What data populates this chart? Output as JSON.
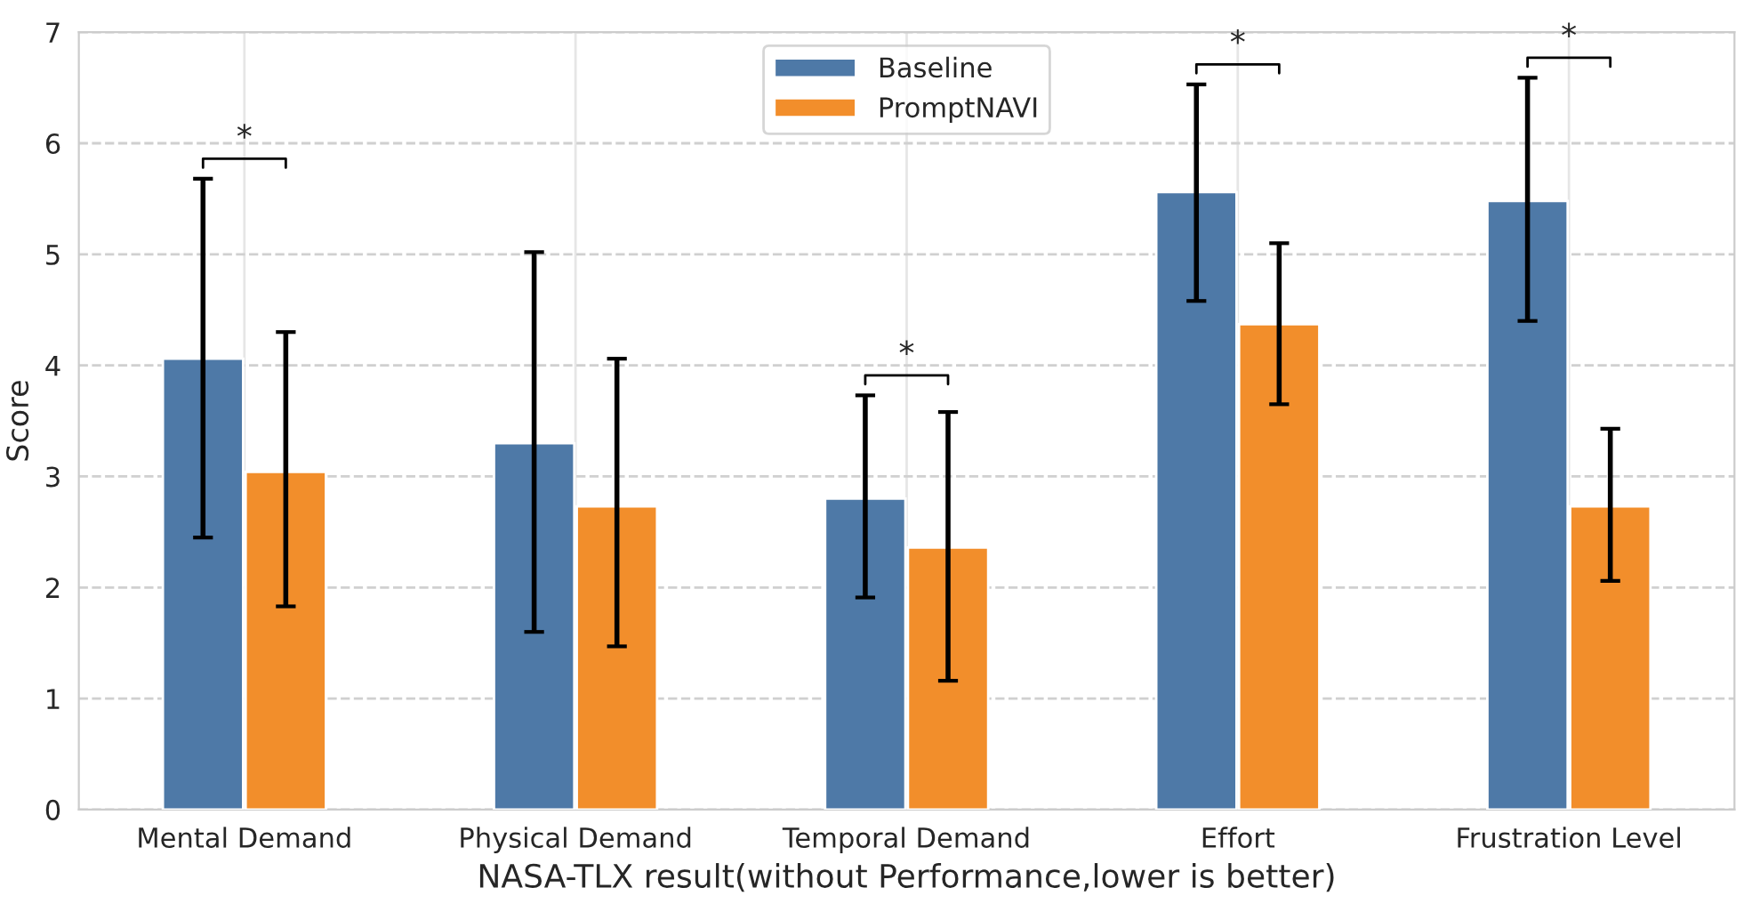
{
  "chart_data": {
    "type": "bar",
    "xlabel": "NASA-TLX result(without Performance,lower is better)",
    "ylabel": "Score",
    "categories": [
      "Mental Demand",
      "Physical Demand",
      "Temporal Demand",
      "Effort",
      "Frustration Level"
    ],
    "series": [
      {
        "name": "Baseline",
        "color": "#4e79a7",
        "values": [
          4.06,
          3.3,
          2.8,
          5.56,
          5.48
        ],
        "errors": [
          [
            2.45,
            5.68
          ],
          [
            1.6,
            5.02
          ],
          [
            1.91,
            3.73
          ],
          [
            4.58,
            6.53
          ],
          [
            4.4,
            6.59
          ]
        ]
      },
      {
        "name": "PromptNAVI",
        "color": "#f28e2b",
        "values": [
          3.04,
          2.73,
          2.36,
          4.37,
          2.73
        ],
        "errors": [
          [
            1.83,
            4.3
          ],
          [
            1.47,
            4.06
          ],
          [
            1.16,
            3.58
          ],
          [
            3.65,
            5.1
          ],
          [
            2.06,
            3.43
          ]
        ]
      }
    ],
    "ylim": [
      0,
      7
    ],
    "yticks": [
      0,
      1,
      2,
      3,
      4,
      5,
      6,
      7
    ],
    "grid": true,
    "legend": "top",
    "annotations": [
      "*",
      "*",
      "*",
      "*"
    ]
  }
}
